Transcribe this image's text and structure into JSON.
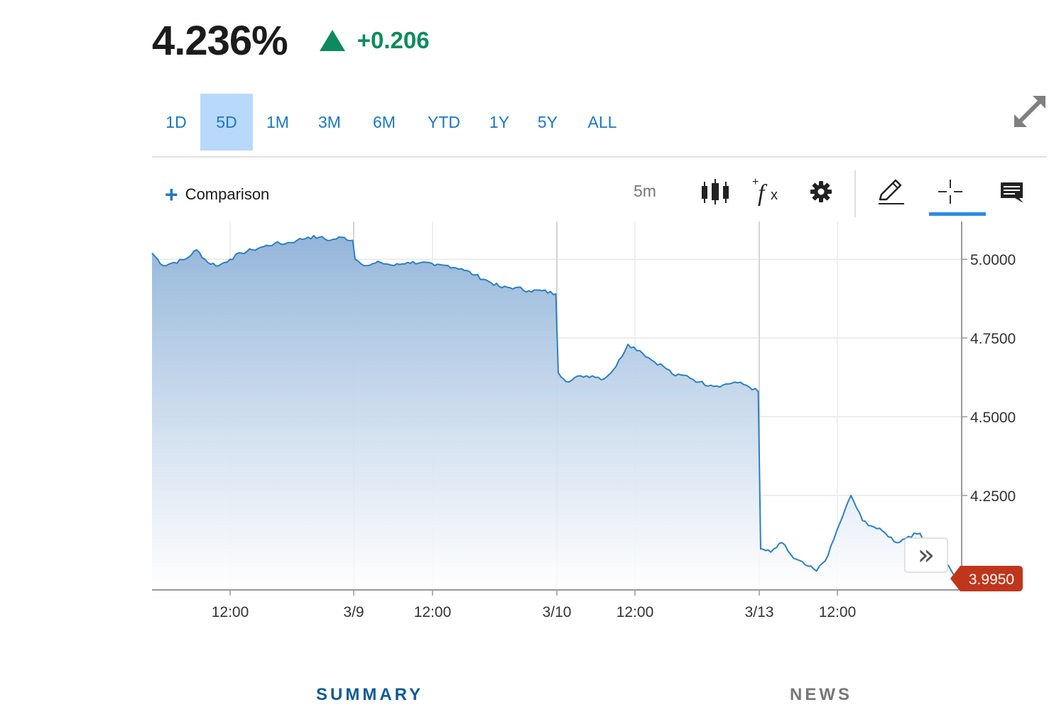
{
  "quote": {
    "price": "4.236%",
    "change": "+0.206",
    "direction": "up",
    "up_color": "#0f8a5f"
  },
  "ranges": {
    "items": [
      "1D",
      "5D",
      "1M",
      "3M",
      "6M",
      "YTD",
      "1Y",
      "5Y",
      "ALL"
    ],
    "active": "5D"
  },
  "toolbar": {
    "comparison_label": "Comparison",
    "interval": "5m",
    "icons": [
      "candlestick-icon",
      "function-icon",
      "gear-icon",
      "pencil-icon",
      "crosshair-icon",
      "comment-icon"
    ]
  },
  "chart_data": {
    "type": "area",
    "xlabel": "",
    "ylabel": "",
    "x_ticks": [
      "12:00",
      "3/9",
      "12:00",
      "3/10",
      "12:00",
      "3/13",
      "12:00"
    ],
    "y_ticks": [
      "5.0000",
      "4.7500",
      "4.5000",
      "4.2500"
    ],
    "ylim": [
      3.95,
      5.12
    ],
    "grid": true,
    "last_value": "3.9950",
    "line_color": "#2f7fc0",
    "fill_top_color": "#94b6da",
    "last_value_color": "#c0361c",
    "series": [
      {
        "values": [
          5.02,
          4.98,
          4.99,
          5.0,
          5.03,
          4.99,
          4.98,
          5.0,
          5.02,
          5.03,
          5.04,
          5.05,
          5.05,
          5.06,
          5.07,
          5.07,
          5.06,
          5.07,
          5.06,
          5.0,
          4.98,
          4.99,
          4.98,
          4.99,
          4.99,
          4.98,
          4.98,
          4.97,
          4.95,
          4.93,
          4.91,
          4.91,
          4.9,
          4.9,
          4.89,
          4.64,
          4.61,
          4.63,
          4.63,
          4.62,
          4.66,
          4.73,
          4.71,
          4.68,
          4.66,
          4.63,
          4.63,
          4.61,
          4.6,
          4.6,
          4.61,
          4.6,
          4.58,
          4.08,
          4.07,
          4.1,
          4.05,
          4.03,
          4.01,
          4.06,
          4.16,
          4.25,
          4.17,
          4.15,
          4.13,
          4.1,
          4.12,
          4.13,
          4.08,
          4.05,
          3.995
        ]
      }
    ]
  },
  "scroll_button_label": "»",
  "bottom_tabs": {
    "summary": "SUMMARY",
    "news": "NEWS",
    "active": "SUMMARY"
  }
}
